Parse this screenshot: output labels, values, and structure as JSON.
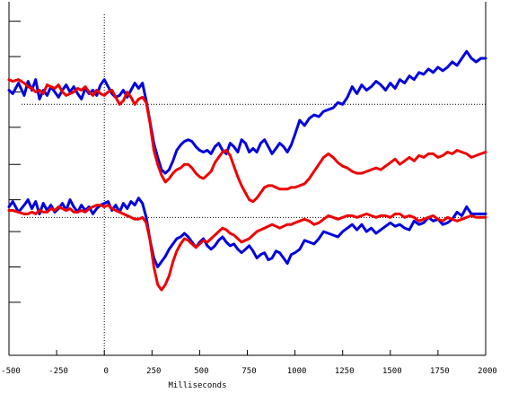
{
  "chart_data": {
    "type": "line",
    "xlabel": "Milliseconds",
    "xlim": [
      -500,
      2000
    ],
    "xticks": [
      "-500",
      "-250",
      "0",
      "250",
      "500",
      "750",
      "1000",
      "1250",
      "1500",
      "1750",
      "2000"
    ],
    "xtick_values": [
      -500,
      -250,
      0,
      250,
      500,
      750,
      1000,
      1250,
      1500,
      1750,
      2000
    ],
    "ylim": [
      -10,
      10
    ],
    "y_unlabeled_ticks": [
      8.9,
      6.9,
      4.9,
      2.9,
      0.8,
      -1.2,
      -3.0,
      -5.0,
      -7.0
    ],
    "reference_lines": {
      "vertical_x": 0,
      "horizontal_y": [
        4.2,
        -2.2
      ],
      "style": "dotted"
    },
    "colors": {
      "blue": "#0000dd",
      "red": "#ee0000",
      "axis": "#000000"
    },
    "panels": [
      {
        "name": "upper",
        "series": [
          {
            "color": "blue",
            "x": [
              -500,
              -480,
              -450,
              -420,
              -400,
              -380,
              -360,
              -340,
              -320,
              -300,
              -280,
              -260,
              -240,
              -220,
              -200,
              -180,
              -160,
              -140,
              -120,
              -100,
              -80,
              -60,
              -40,
              -20,
              0,
              20,
              40,
              60,
              80,
              100,
              120,
              140,
              160,
              180,
              200,
              220,
              240,
              260,
              280,
              300,
              320,
              340,
              360,
              380,
              400,
              420,
              440,
              460,
              480,
              500,
              520,
              540,
              560,
              580,
              600,
              620,
              640,
              660,
              680,
              700,
              720,
              740,
              760,
              780,
              800,
              820,
              840,
              860,
              880,
              900,
              920,
              940,
              960,
              980,
              1000,
              1025,
              1050,
              1075,
              1100,
              1125,
              1150,
              1175,
              1200,
              1225,
              1250,
              1275,
              1300,
              1325,
              1350,
              1375,
              1400,
              1425,
              1450,
              1475,
              1500,
              1525,
              1550,
              1575,
              1600,
              1625,
              1650,
              1675,
              1700,
              1725,
              1750,
              1775,
              1800,
              1825,
              1850,
              1875,
              1900,
              1925,
              1950,
              1975,
              2000
            ],
            "y": [
              5.0,
              4.8,
              5.4,
              4.7,
              5.5,
              5.0,
              5.6,
              4.5,
              5.0,
              4.7,
              5.2,
              4.9,
              4.6,
              5.0,
              5.3,
              4.9,
              5.2,
              4.8,
              4.5,
              5.1,
              4.8,
              5.0,
              4.7,
              5.3,
              5.6,
              5.2,
              4.8,
              4.6,
              4.7,
              5.0,
              4.6,
              5.0,
              5.4,
              5.1,
              5.4,
              4.4,
              3.2,
              2.0,
              1.2,
              0.5,
              0.3,
              0.5,
              1.0,
              1.6,
              1.9,
              2.1,
              2.2,
              2.1,
              1.8,
              1.6,
              1.5,
              1.6,
              1.4,
              1.8,
              2.0,
              1.6,
              1.4,
              2.0,
              1.8,
              1.5,
              2.2,
              2.0,
              1.5,
              1.7,
              1.5,
              2.0,
              2.2,
              1.8,
              1.4,
              1.7,
              2.0,
              1.8,
              1.5,
              1.9,
              2.5,
              3.3,
              3.0,
              3.4,
              3.6,
              3.5,
              3.8,
              3.9,
              4.0,
              4.3,
              4.2,
              4.6,
              5.2,
              4.8,
              5.3,
              5.0,
              5.2,
              5.5,
              5.3,
              5.0,
              5.4,
              5.1,
              5.6,
              5.4,
              5.8,
              5.6,
              6.0,
              5.9,
              6.2,
              6.0,
              6.3,
              6.1,
              6.3,
              6.6,
              6.4,
              6.8,
              7.2,
              6.8,
              6.6,
              6.8,
              6.8
            ]
          },
          {
            "color": "red",
            "x": [
              -500,
              -480,
              -450,
              -420,
              -400,
              -380,
              -360,
              -340,
              -320,
              -300,
              -280,
              -260,
              -240,
              -220,
              -200,
              -180,
              -160,
              -140,
              -120,
              -100,
              -80,
              -60,
              -40,
              -20,
              0,
              20,
              40,
              60,
              80,
              100,
              120,
              140,
              160,
              180,
              200,
              220,
              240,
              260,
              280,
              300,
              320,
              340,
              360,
              380,
              400,
              420,
              440,
              460,
              480,
              500,
              520,
              540,
              560,
              580,
              600,
              620,
              640,
              660,
              680,
              700,
              720,
              740,
              760,
              780,
              800,
              820,
              840,
              860,
              880,
              900,
              920,
              940,
              960,
              980,
              1000,
              1025,
              1050,
              1075,
              1100,
              1125,
              1150,
              1175,
              1200,
              1225,
              1250,
              1275,
              1300,
              1325,
              1350,
              1375,
              1400,
              1425,
              1450,
              1475,
              1500,
              1525,
              1550,
              1575,
              1600,
              1625,
              1650,
              1675,
              1700,
              1725,
              1750,
              1775,
              1800,
              1825,
              1850,
              1875,
              1900,
              1925,
              1950,
              1975,
              2000
            ],
            "y": [
              5.6,
              5.5,
              5.6,
              5.4,
              5.2,
              5.1,
              4.9,
              5.0,
              4.8,
              5.3,
              5.2,
              5.1,
              5.3,
              4.9,
              4.7,
              4.8,
              4.9,
              5.1,
              5.0,
              5.2,
              4.9,
              4.7,
              5.0,
              4.8,
              4.7,
              4.9,
              5.0,
              4.6,
              4.2,
              4.4,
              4.9,
              4.6,
              4.2,
              4.5,
              4.6,
              4.3,
              3.1,
              1.6,
              0.8,
              0.2,
              -0.2,
              0.0,
              0.3,
              0.5,
              0.6,
              0.8,
              0.8,
              0.6,
              0.3,
              0.1,
              0.0,
              0.2,
              0.4,
              0.9,
              1.2,
              1.5,
              1.6,
              1.3,
              0.7,
              0.1,
              -0.4,
              -0.8,
              -1.2,
              -1.3,
              -1.1,
              -0.8,
              -0.5,
              -0.4,
              -0.4,
              -0.5,
              -0.6,
              -0.6,
              -0.6,
              -0.5,
              -0.5,
              -0.4,
              -0.3,
              0.0,
              0.4,
              0.8,
              1.2,
              1.4,
              1.2,
              0.9,
              0.7,
              0.6,
              0.4,
              0.3,
              0.3,
              0.4,
              0.5,
              0.6,
              0.5,
              0.7,
              0.9,
              1.1,
              0.8,
              1.0,
              1.2,
              1.0,
              1.3,
              1.2,
              1.4,
              1.4,
              1.2,
              1.3,
              1.5,
              1.4,
              1.6,
              1.5,
              1.4,
              1.2,
              1.3,
              1.4,
              1.5
            ]
          }
        ]
      },
      {
        "name": "lower",
        "series": [
          {
            "color": "blue",
            "x": [
              -500,
              -480,
              -450,
              -420,
              -400,
              -380,
              -360,
              -340,
              -320,
              -300,
              -280,
              -260,
              -240,
              -220,
              -200,
              -180,
              -160,
              -140,
              -120,
              -100,
              -80,
              -60,
              -40,
              -20,
              0,
              20,
              40,
              60,
              80,
              100,
              120,
              140,
              160,
              180,
              200,
              220,
              240,
              260,
              280,
              300,
              320,
              340,
              360,
              380,
              400,
              420,
              440,
              460,
              480,
              500,
              520,
              540,
              560,
              580,
              600,
              620,
              640,
              660,
              680,
              700,
              720,
              740,
              760,
              780,
              800,
              820,
              840,
              860,
              880,
              900,
              920,
              940,
              960,
              980,
              1000,
              1025,
              1050,
              1075,
              1100,
              1125,
              1150,
              1175,
              1200,
              1225,
              1250,
              1275,
              1300,
              1325,
              1350,
              1375,
              1400,
              1425,
              1450,
              1475,
              1500,
              1525,
              1550,
              1575,
              1600,
              1625,
              1650,
              1675,
              1700,
              1725,
              1750,
              1775,
              1800,
              1825,
              1850,
              1875,
              1900,
              1925,
              1950,
              1975,
              2000
            ],
            "y": [
              -1.6,
              -1.3,
              -1.9,
              -1.5,
              -1.2,
              -1.7,
              -1.3,
              -2.0,
              -1.4,
              -1.8,
              -1.5,
              -1.9,
              -1.7,
              -1.4,
              -1.8,
              -1.2,
              -1.6,
              -1.9,
              -1.5,
              -1.8,
              -1.6,
              -2.0,
              -1.7,
              -1.5,
              -1.4,
              -1.3,
              -1.8,
              -1.5,
              -1.9,
              -1.4,
              -1.7,
              -1.3,
              -1.5,
              -1.1,
              -1.4,
              -2.2,
              -3.5,
              -4.5,
              -5.0,
              -4.7,
              -4.4,
              -4.0,
              -3.7,
              -3.4,
              -3.3,
              -3.1,
              -3.3,
              -3.6,
              -3.9,
              -3.6,
              -3.4,
              -3.8,
              -4.0,
              -3.8,
              -3.5,
              -3.3,
              -3.6,
              -3.8,
              -3.7,
              -4.0,
              -4.2,
              -4.0,
              -3.8,
              -4.1,
              -4.5,
              -4.3,
              -4.2,
              -4.6,
              -4.5,
              -4.1,
              -4.2,
              -4.5,
              -4.8,
              -4.3,
              -4.2,
              -4.0,
              -3.5,
              -3.6,
              -3.7,
              -3.4,
              -3.0,
              -3.1,
              -3.2,
              -3.3,
              -3.0,
              -2.8,
              -2.6,
              -2.9,
              -2.6,
              -3.0,
              -2.8,
              -3.1,
              -2.9,
              -2.7,
              -2.5,
              -2.7,
              -2.6,
              -2.8,
              -2.9,
              -2.4,
              -2.6,
              -2.5,
              -2.2,
              -2.4,
              -2.3,
              -2.6,
              -2.5,
              -2.3,
              -1.9,
              -2.1,
              -1.6,
              -2.0,
              -2.0,
              -2.0,
              -2.0
            ]
          },
          {
            "color": "red",
            "x": [
              -500,
              -480,
              -450,
              -420,
              -400,
              -380,
              -360,
              -340,
              -320,
              -300,
              -280,
              -260,
              -240,
              -220,
              -200,
              -180,
              -160,
              -140,
              -120,
              -100,
              -80,
              -60,
              -40,
              -20,
              0,
              20,
              40,
              60,
              80,
              100,
              120,
              140,
              160,
              180,
              200,
              220,
              240,
              260,
              280,
              300,
              320,
              340,
              360,
              380,
              400,
              420,
              440,
              460,
              480,
              500,
              520,
              540,
              560,
              580,
              600,
              620,
              640,
              660,
              680,
              700,
              720,
              740,
              760,
              780,
              800,
              820,
              840,
              860,
              880,
              900,
              920,
              940,
              960,
              980,
              1000,
              1025,
              1050,
              1075,
              1100,
              1125,
              1150,
              1175,
              1200,
              1225,
              1250,
              1275,
              1300,
              1325,
              1350,
              1375,
              1400,
              1425,
              1450,
              1475,
              1500,
              1525,
              1550,
              1575,
              1600,
              1625,
              1650,
              1675,
              1700,
              1725,
              1750,
              1775,
              1800,
              1825,
              1850,
              1875,
              1900,
              1925,
              1950,
              1975,
              2000
            ],
            "y": [
              -1.8,
              -1.8,
              -1.9,
              -2.0,
              -2.0,
              -1.9,
              -2.0,
              -1.8,
              -1.9,
              -1.9,
              -1.7,
              -1.8,
              -1.6,
              -1.7,
              -1.8,
              -1.7,
              -1.9,
              -1.9,
              -1.8,
              -1.9,
              -1.7,
              -1.6,
              -1.5,
              -1.5,
              -1.6,
              -1.5,
              -1.7,
              -1.8,
              -1.9,
              -2.0,
              -2.1,
              -2.2,
              -2.3,
              -2.3,
              -2.2,
              -2.5,
              -3.5,
              -5.0,
              -6.0,
              -6.3,
              -6.0,
              -5.5,
              -4.7,
              -4.1,
              -3.7,
              -3.4,
              -3.5,
              -3.7,
              -3.9,
              -3.7,
              -3.5,
              -3.6,
              -3.4,
              -3.2,
              -3.0,
              -2.8,
              -2.9,
              -3.1,
              -3.2,
              -3.4,
              -3.6,
              -3.5,
              -3.4,
              -3.2,
              -3.0,
              -2.9,
              -2.8,
              -2.7,
              -2.6,
              -2.7,
              -2.8,
              -2.7,
              -2.6,
              -2.6,
              -2.5,
              -2.4,
              -2.3,
              -2.4,
              -2.6,
              -2.5,
              -2.3,
              -2.1,
              -2.2,
              -2.3,
              -2.2,
              -2.1,
              -2.1,
              -2.2,
              -2.1,
              -2.0,
              -2.1,
              -2.2,
              -2.1,
              -2.1,
              -2.2,
              -2.0,
              -2.0,
              -2.2,
              -2.1,
              -2.2,
              -2.4,
              -2.3,
              -2.2,
              -2.1,
              -2.3,
              -2.4,
              -2.2,
              -2.3,
              -2.4,
              -2.3,
              -2.2,
              -2.1,
              -2.2,
              -2.2,
              -2.2
            ]
          }
        ]
      }
    ]
  }
}
